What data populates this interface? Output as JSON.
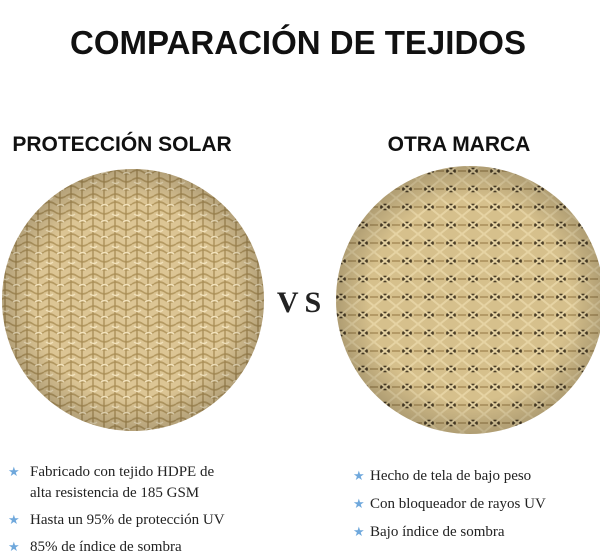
{
  "title": "COMPARACIÓN DE TEJIDOS",
  "separator": "VS",
  "left": {
    "heading": "PROTECCIÓN SOLAR",
    "bullets": [
      [
        "Fabricado con tejido HDPE de",
        "alta resistencia de 185 GSM"
      ],
      [
        "Hasta un 95% de protección UV"
      ],
      [
        "85% de índice de sombra"
      ]
    ]
  },
  "right": {
    "heading": "OTRA MARCA",
    "bullets": [
      [
        "Hecho de tela de bajo peso"
      ],
      [
        "Con bloqueador de rayos UV"
      ],
      [
        "Bajo índice de sombra"
      ]
    ]
  }
}
